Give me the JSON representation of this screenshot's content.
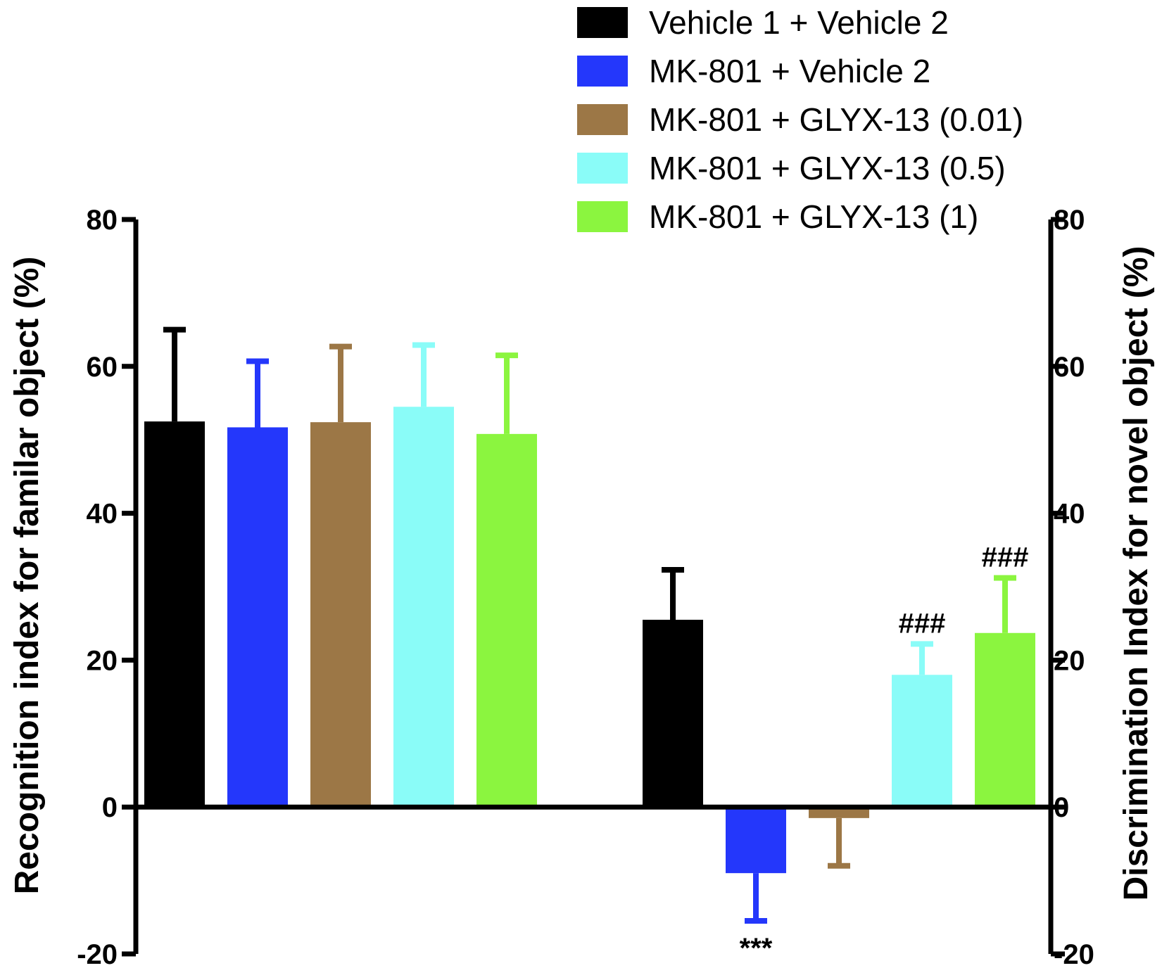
{
  "chart_data": {
    "type": "bar",
    "title": "",
    "ylabel_left": "Recognition index for familar object (%)",
    "ylabel_right": "Discrimination Index for novel object (%)",
    "ylim": [
      -20,
      80
    ],
    "yticks": [
      -20,
      0,
      20,
      40,
      60,
      80
    ],
    "tick_labels": [
      "-20",
      "0",
      "20",
      "40",
      "60",
      "80"
    ],
    "groups": [
      {
        "name": "Recognition index",
        "axis": "left",
        "series": [
          {
            "series": 0,
            "value": 52.5,
            "error": 12.5,
            "annotation": ""
          },
          {
            "series": 1,
            "value": 51.7,
            "error": 9.0,
            "annotation": ""
          },
          {
            "series": 2,
            "value": 52.4,
            "error": 10.3,
            "annotation": ""
          },
          {
            "series": 3,
            "value": 54.5,
            "error": 8.4,
            "annotation": ""
          },
          {
            "series": 4,
            "value": 50.8,
            "error": 10.7,
            "annotation": ""
          }
        ]
      },
      {
        "name": "Discrimination index",
        "axis": "right",
        "series": [
          {
            "series": 0,
            "value": 25.5,
            "error": 6.8,
            "annotation": ""
          },
          {
            "series": 1,
            "value": -9.0,
            "error": 6.5,
            "annotation": "***"
          },
          {
            "series": 2,
            "value": -1.5,
            "error": 6.5,
            "annotation": ""
          },
          {
            "series": 3,
            "value": 18.0,
            "error": 4.2,
            "annotation": "###"
          },
          {
            "series": 4,
            "value": 23.7,
            "error": 7.5,
            "annotation": "###"
          }
        ]
      }
    ],
    "series": [
      {
        "name": "Vehicle 1 + Vehicle 2",
        "color": "#000000"
      },
      {
        "name": "MK-801 + Vehicle 2",
        "color": "#2437FB"
      },
      {
        "name": "MK-801 + GLYX-13 (0.01)",
        "color": "#9C7746"
      },
      {
        "name": "MK-801 + GLYX-13 (0.5)",
        "color": "#8AFCF8"
      },
      {
        "name": "MK-801 + GLYX-13 (1)",
        "color": "#8BF53F"
      }
    ],
    "legend_position": "top-right"
  }
}
